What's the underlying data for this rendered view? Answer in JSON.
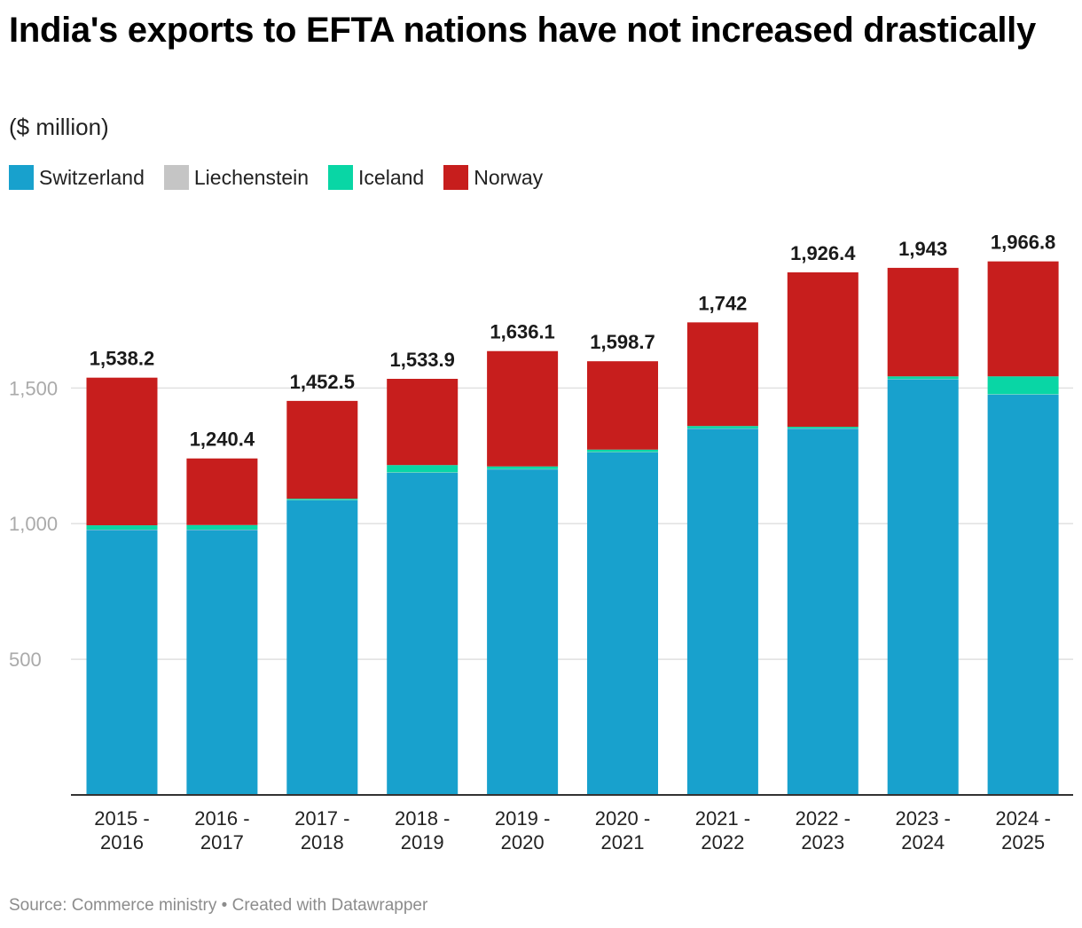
{
  "header": {
    "title": "India's exports to EFTA nations have not increased drastically",
    "subtitle": "($ million)"
  },
  "legend": [
    {
      "label": "Switzerland",
      "color": "#18a1cd"
    },
    {
      "label": "Liechenstein",
      "color": "#c5c5c5"
    },
    {
      "label": "Iceland",
      "color": "#09d6a5"
    },
    {
      "label": "Norway",
      "color": "#c71e1d"
    }
  ],
  "footer": {
    "source": "Source: Commerce ministry • Created with Datawrapper"
  },
  "chart_data": {
    "type": "bar",
    "stacked": true,
    "title": "India's exports to EFTA nations have not increased drastically",
    "ylabel": "($ million)",
    "ylim": [
      0,
      2000
    ],
    "yticks": [
      500,
      1000,
      1500
    ],
    "ytick_labels": [
      "500",
      "1,000",
      "1,500"
    ],
    "grid": true,
    "legend_position": "top-left",
    "categories": [
      [
        "2015 -",
        "2016"
      ],
      [
        "2016 -",
        "2017"
      ],
      [
        "2017 -",
        "2018"
      ],
      [
        "2018 -",
        "2019"
      ],
      [
        "2019 -",
        "2020"
      ],
      [
        "2020 -",
        "2021"
      ],
      [
        "2021 -",
        "2022"
      ],
      [
        "2022 -",
        "2023"
      ],
      [
        "2023 -",
        "2024"
      ],
      [
        "2024 -",
        "2025"
      ]
    ],
    "series": [
      {
        "name": "Switzerland",
        "color": "#18a1cd",
        "values": [
          977,
          977,
          1086,
          1188,
          1200,
          1263,
          1350,
          1350,
          1532,
          1476
        ]
      },
      {
        "name": "Liechenstein",
        "color": "#c5c5c5",
        "values": [
          1,
          1,
          1,
          1,
          1,
          1,
          1,
          1,
          1,
          1
        ]
      },
      {
        "name": "Iceland",
        "color": "#09d6a5",
        "values": [
          16,
          17,
          5,
          27,
          10,
          9,
          9,
          6,
          10,
          66
        ]
      },
      {
        "name": "Norway",
        "color": "#c71e1d",
        "values": [
          544.2,
          245.4,
          360.5,
          317.9,
          425.1,
          325.7,
          382,
          569.4,
          400,
          423.8
        ]
      }
    ],
    "totals": [
      1538.2,
      1240.4,
      1452.5,
      1533.9,
      1636.1,
      1598.7,
      1742,
      1926.4,
      1943,
      1966.8
    ],
    "total_labels": [
      "1,538.2",
      "1,240.4",
      "1,452.5",
      "1,533.9",
      "1,636.1",
      "1,598.7",
      "1,742",
      "1,926.4",
      "1,943",
      "1,966.8"
    ]
  }
}
